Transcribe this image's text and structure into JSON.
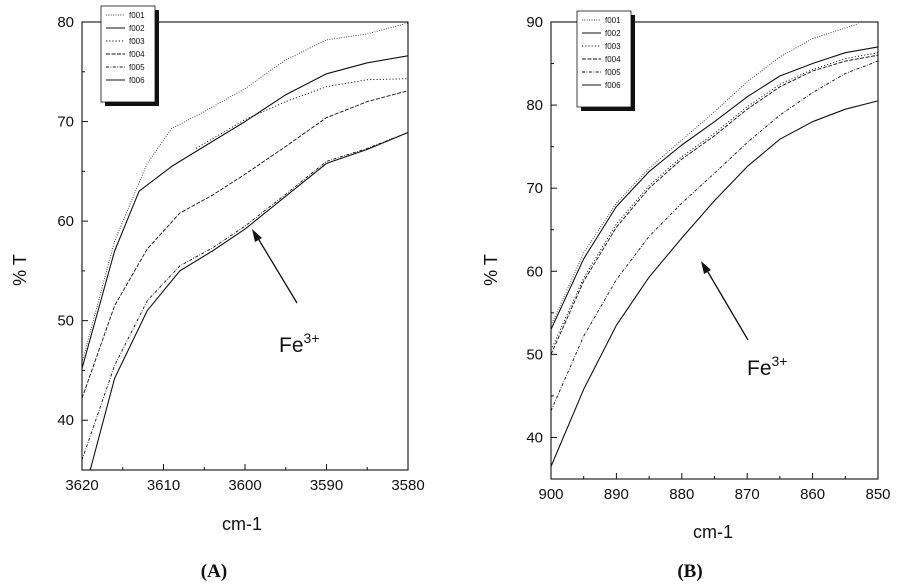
{
  "colors": {
    "ink": "#111111",
    "paper": "#ffffff",
    "legend_shadow": "#111111"
  },
  "chart_data": [
    {
      "type": "line",
      "panel_label": "(A)",
      "xlabel": "cm-1",
      "ylabel": "% T",
      "x_reversed": true,
      "xlim": [
        3620,
        3580
      ],
      "ylim": [
        35,
        80
      ],
      "x_ticks": [
        "3620",
        "3610",
        "3600",
        "3590",
        "3580"
      ],
      "y_ticks": [
        "40",
        "50",
        "60",
        "70",
        "80"
      ],
      "legend": [
        "f001",
        "f002",
        "f003",
        "f004",
        "f005",
        "f006"
      ],
      "legend_position": "top-left",
      "annotation": {
        "text_base": "Fe",
        "text_sup": "3+"
      },
      "series": [
        {
          "name": "f001",
          "x": [
            3620,
            3616,
            3612,
            3609,
            3605,
            3600,
            3595,
            3590,
            3585,
            3580
          ],
          "y": [
            45.8,
            58.0,
            65.8,
            69.3,
            71.0,
            73.3,
            76.2,
            78.2,
            78.8,
            79.9
          ]
        },
        {
          "name": "f002",
          "x": [
            3620,
            3616,
            3613,
            3609,
            3606,
            3600,
            3595,
            3590,
            3585,
            3580
          ],
          "y": [
            45.2,
            57.0,
            63.0,
            65.5,
            67.0,
            70.0,
            72.7,
            74.8,
            75.9,
            76.6
          ]
        },
        {
          "name": "f003",
          "x": [
            3606,
            3600,
            3595,
            3590,
            3585,
            3580
          ],
          "y": [
            67.3,
            70.2,
            72.0,
            73.5,
            74.2,
            74.3
          ]
        },
        {
          "name": "f004",
          "x": [
            3620,
            3616,
            3612,
            3608,
            3604,
            3600,
            3595,
            3590,
            3585,
            3580
          ],
          "y": [
            42.2,
            51.5,
            57.2,
            60.8,
            62.6,
            64.7,
            67.5,
            70.4,
            72.0,
            73.1
          ]
        },
        {
          "name": "f005",
          "x": [
            3620,
            3616,
            3612,
            3608,
            3604,
            3600,
            3595,
            3590,
            3585,
            3580
          ],
          "y": [
            36.0,
            45.5,
            52.0,
            55.5,
            57.3,
            59.5,
            62.7,
            66.0,
            67.3,
            68.9
          ]
        },
        {
          "name": "f006",
          "x": [
            3619,
            3616,
            3612,
            3608,
            3604,
            3600,
            3595,
            3590,
            3585,
            3580
          ],
          "y": [
            35.0,
            44.2,
            51.0,
            55.0,
            57.0,
            59.2,
            62.5,
            65.8,
            67.2,
            68.9
          ]
        }
      ]
    },
    {
      "type": "line",
      "panel_label": "(B)",
      "xlabel": "cm-1",
      "ylabel": "% T",
      "x_reversed": true,
      "xlim": [
        900,
        850
      ],
      "ylim": [
        35,
        90
      ],
      "x_ticks": [
        "900",
        "890",
        "880",
        "870",
        "860",
        "850"
      ],
      "y_ticks": [
        "40",
        "50",
        "60",
        "70",
        "80",
        "90"
      ],
      "legend": [
        "f001",
        "f002",
        "f003",
        "f004",
        "f005",
        "f006"
      ],
      "legend_position": "top-left",
      "annotation": {
        "text_base": "Fe",
        "text_sup": "3+"
      },
      "series": [
        {
          "name": "f001",
          "x": [
            900,
            895,
            890,
            885,
            880,
            875,
            870,
            865,
            860,
            853
          ],
          "y": [
            53.5,
            62.2,
            68.2,
            72.4,
            75.8,
            79.2,
            82.8,
            85.8,
            88.0,
            89.8
          ]
        },
        {
          "name": "f002",
          "x": [
            900,
            895,
            890,
            885,
            880,
            875,
            870,
            865,
            860,
            855,
            850
          ],
          "y": [
            53.0,
            61.5,
            67.8,
            72.0,
            75.2,
            78.0,
            81.0,
            83.5,
            85.0,
            86.3,
            87.0
          ]
        },
        {
          "name": "f003",
          "x": [
            900,
            895,
            890,
            885,
            880,
            875,
            870,
            865,
            860,
            855,
            850
          ],
          "y": [
            50.5,
            59.2,
            65.7,
            70.3,
            73.8,
            76.6,
            79.8,
            82.5,
            84.3,
            85.6,
            86.3
          ]
        },
        {
          "name": "f004",
          "x": [
            900,
            895,
            890,
            885,
            880,
            875,
            870,
            865,
            860,
            855,
            850
          ],
          "y": [
            50.0,
            58.8,
            65.3,
            70.0,
            73.5,
            76.3,
            79.5,
            82.2,
            84.1,
            85.3,
            86.0
          ]
        },
        {
          "name": "f005",
          "x": [
            900,
            895,
            890,
            885,
            880,
            875,
            870,
            865,
            860,
            855,
            850
          ],
          "y": [
            43.2,
            52.2,
            59.0,
            64.2,
            68.2,
            71.8,
            75.5,
            78.8,
            81.5,
            83.8,
            85.3
          ]
        },
        {
          "name": "f006",
          "x": [
            900,
            895,
            890,
            885,
            880,
            875,
            870,
            865,
            860,
            855,
            850
          ],
          "y": [
            36.5,
            45.8,
            53.5,
            59.3,
            64.0,
            68.5,
            72.6,
            75.9,
            78.0,
            79.5,
            80.5
          ]
        }
      ]
    }
  ]
}
